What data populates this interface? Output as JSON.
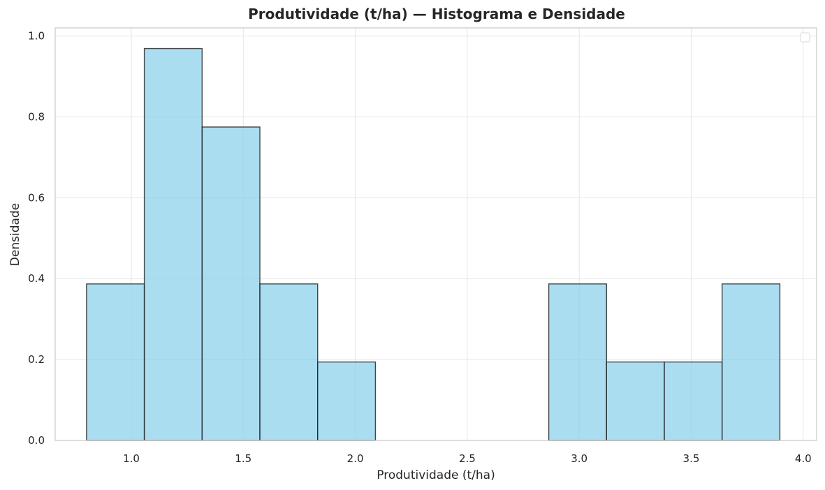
{
  "chart_data": {
    "type": "bar",
    "subtype": "histogram",
    "title": "Produtividade (t/ha) — Histograma e Densidade",
    "xlabel": "Produtividade (t/ha)",
    "ylabel": "Densidade",
    "xlim": [
      0.66,
      4.06
    ],
    "ylim": [
      0,
      1.02
    ],
    "x_ticks": [
      1.0,
      1.5,
      2.0,
      2.5,
      3.0,
      3.5,
      4.0
    ],
    "y_ticks": [
      0.0,
      0.2,
      0.4,
      0.6,
      0.8,
      1.0
    ],
    "x_tick_labels": [
      "1.0",
      "1.5",
      "2.0",
      "2.5",
      "3.0",
      "3.5",
      "4.0"
    ],
    "y_tick_labels": [
      "0.0",
      "0.2",
      "0.4",
      "0.6",
      "0.8",
      "1.0"
    ],
    "bin_edges": [
      0.8,
      1.058,
      1.316,
      1.574,
      1.832,
      2.09,
      2.348,
      2.606,
      2.864,
      3.122,
      3.38,
      3.638,
      3.896
    ],
    "values": [
      0.387,
      0.969,
      0.775,
      0.387,
      0.194,
      0.0,
      0.0,
      0.0,
      0.387,
      0.194,
      0.194,
      0.387
    ],
    "grid": true,
    "legend": "top-right (empty)",
    "colors": {
      "bar_fill": "#87ceeb",
      "bar_edge": "#1a1a1a",
      "grid": "#e6e6e6",
      "spine": "#cccccc",
      "text": "#262626"
    }
  }
}
